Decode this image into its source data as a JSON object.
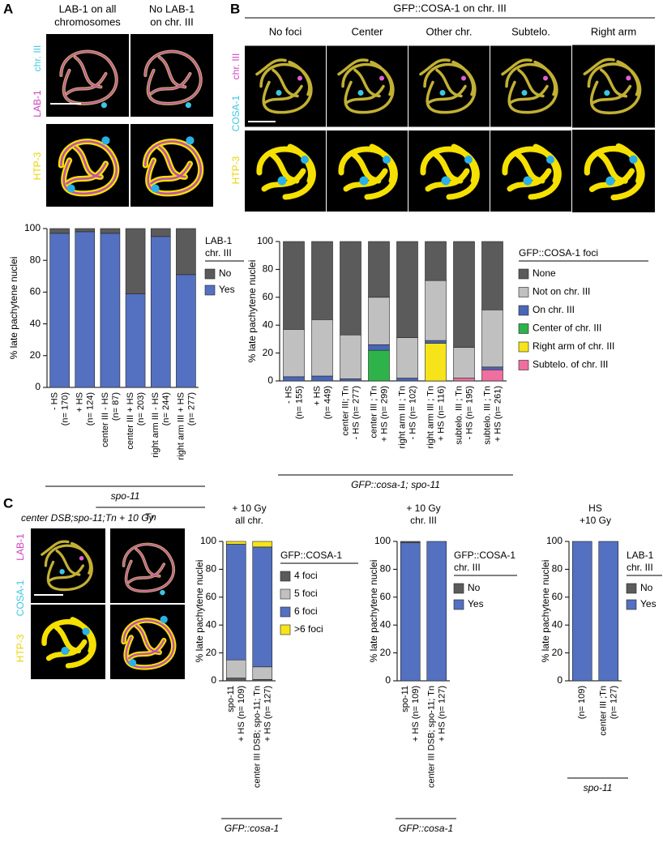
{
  "panels": {
    "a": {
      "label": "A",
      "column_headers": [
        [
          "LAB-1 on all",
          "chromosomes"
        ],
        [
          "No LAB-1",
          "on chr. III"
        ]
      ],
      "stains": [
        "chr. III",
        "LAB-1",
        "HTP-3"
      ]
    },
    "b": {
      "label": "B",
      "header": "GFP::COSA-1 on chr. III",
      "columns": [
        "No foci",
        "Center",
        "Other chr.",
        "Subtelo.",
        "Right arm"
      ],
      "stains": [
        "chr. III",
        "COSA-1",
        "HTP-3"
      ]
    },
    "c": {
      "label": "C",
      "caption": "center DSB;spo-11;Tn + 10 Gy",
      "stains": [
        "LAB-1",
        "COSA-1",
        "HTP-3"
      ]
    }
  },
  "chart_data": [
    {
      "type": "bar",
      "stacked": true,
      "ylabel": "% late pachytene nuclei",
      "categories": [
        "- HS",
        "+ HS",
        "center III - HS",
        "center III + HS",
        "right arm III - HS",
        "right arm III + HS"
      ],
      "category_sublabels": [
        "(n= 170)",
        "(n= 124)",
        "(n= 87)",
        "(n= 203)",
        "(n= 244)",
        "(n= 277)"
      ],
      "groups": [
        "spo-11",
        "Tn"
      ],
      "legend_title": [
        "LAB-1",
        "chr. III"
      ],
      "series": [
        {
          "name": "No",
          "color": "#5b5b5b",
          "values": [
            3,
            2,
            3,
            41,
            5,
            29
          ]
        },
        {
          "name": "Yes",
          "color": "#5470c0",
          "values": [
            97,
            98,
            97,
            59,
            95,
            71
          ]
        }
      ],
      "ylim": [
        0,
        100
      ],
      "yticks": [
        0,
        20,
        40,
        60,
        80,
        100
      ]
    },
    {
      "type": "bar",
      "stacked": true,
      "ylabel": "% late pachytene nuclei",
      "categories": [
        "- HS",
        "+ HS",
        "center III; Tn",
        "center III ; Tn",
        "right arm III ; Tn",
        "right arm III ; Tn",
        "subtelo. III ; Tn",
        "subtelo. III ; Tn"
      ],
      "category_sublabels": [
        "(n= 155)",
        "(n= 449)",
        "- HS (n= 277)",
        "+ HS (n= 299)",
        "- HS (n= 102)",
        "+ HS (n= 116)",
        "- HS (n= 195)",
        "+ HS (n= 261)"
      ],
      "groups": [
        "GFP::cosa-1; spo-11"
      ],
      "legend_title": [
        "GFP::COSA-1 foci"
      ],
      "series": [
        {
          "name": "None",
          "color": "#5b5b5b",
          "values": [
            63,
            56,
            67,
            40,
            69,
            28,
            76,
            49
          ]
        },
        {
          "name": "Not on chr. III",
          "color": "#c0c0c0",
          "values": [
            34,
            40.5,
            31.5,
            34,
            29,
            43,
            22,
            41
          ]
        },
        {
          "name": "On chr. III",
          "color": "#4a66b8",
          "values": [
            3,
            3.5,
            1.5,
            4,
            2,
            2,
            0,
            2
          ]
        },
        {
          "name": "Center of chr. III",
          "color": "#2db34a",
          "values": [
            0,
            0,
            0,
            22,
            0,
            0,
            0,
            0
          ]
        },
        {
          "name": "Right arm of chr. III",
          "color": "#f7e31a",
          "values": [
            0,
            0,
            0,
            0,
            0,
            27,
            0,
            0
          ]
        },
        {
          "name": "Subtelo. of chr. III",
          "color": "#ee6fa0",
          "values": [
            0,
            0,
            0,
            0,
            0,
            0,
            2,
            8
          ]
        }
      ],
      "ylim": [
        0,
        100
      ],
      "yticks": [
        0,
        20,
        40,
        60,
        80,
        100
      ]
    },
    {
      "type": "bar",
      "stacked": true,
      "title": [
        "+ 10 Gy",
        "all chr."
      ],
      "ylabel": "% late pachytene nuclei",
      "categories": [
        "spo-11",
        "center III DSB; spo-11; Tn"
      ],
      "category_sublabels": [
        "+ HS (n= 109)",
        "+ HS (n= 127)"
      ],
      "groups": [
        "GFP::cosa-1"
      ],
      "legend_title": [
        "GFP::COSA-1"
      ],
      "series": [
        {
          "name": "4 foci",
          "color": "#5b5b5b",
          "values": [
            2,
            1
          ]
        },
        {
          "name": "5 foci",
          "color": "#c0c0c0",
          "values": [
            13,
            9
          ]
        },
        {
          "name": "6 foci",
          "color": "#5470c0",
          "values": [
            83,
            86
          ]
        },
        {
          "name": ">6 foci",
          "color": "#f7e31a",
          "values": [
            2,
            4
          ]
        }
      ],
      "ylim": [
        0,
        100
      ],
      "yticks": [
        0,
        20,
        40,
        60,
        80,
        100
      ]
    },
    {
      "type": "bar",
      "stacked": true,
      "title": [
        "+ 10 Gy",
        "chr. III"
      ],
      "ylabel": "% late pachytene nuclei",
      "categories": [
        "spo-11",
        "center III DSB; spo-11; Tn"
      ],
      "category_sublabels": [
        "+ HS (n= 109)",
        "+ HS (n= 127)"
      ],
      "groups": [
        "GFP::cosa-1"
      ],
      "legend_title": [
        "GFP::COSA-1",
        "chr. III"
      ],
      "series": [
        {
          "name": "No",
          "color": "#5b5b5b",
          "values": [
            1,
            0
          ]
        },
        {
          "name": "Yes",
          "color": "#5470c0",
          "values": [
            99,
            100
          ]
        }
      ],
      "ylim": [
        0,
        100
      ],
      "yticks": [
        0,
        20,
        40,
        60,
        80,
        100
      ]
    },
    {
      "type": "bar",
      "stacked": true,
      "title": [
        "HS",
        "+10 Gy"
      ],
      "ylabel": "% late pachytene nuclei",
      "categories": [
        null,
        "center III ;Tn"
      ],
      "category_sublabels": [
        "(n= 109)",
        "(n= 127)"
      ],
      "groups": [
        "spo-11"
      ],
      "legend_title": [
        "LAB-1",
        "chr. III"
      ],
      "series": [
        {
          "name": "No",
          "color": "#5b5b5b",
          "values": [
            0,
            0
          ]
        },
        {
          "name": "Yes",
          "color": "#5470c0",
          "values": [
            100,
            100
          ]
        }
      ],
      "ylim": [
        0,
        100
      ],
      "yticks": [
        0,
        20,
        40,
        60,
        80,
        100
      ]
    }
  ]
}
